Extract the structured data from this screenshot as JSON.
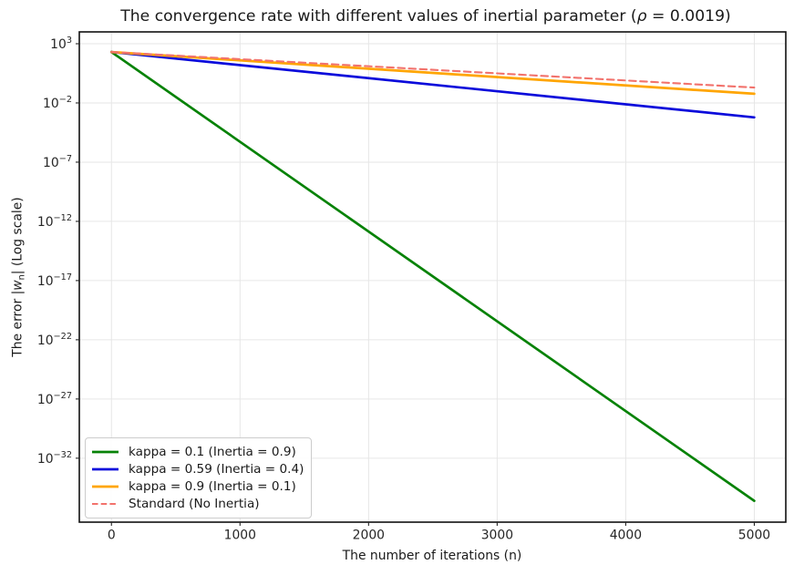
{
  "chart_data": {
    "type": "line",
    "title": {
      "pre": "The convergence rate with different values of inertial parameter (",
      "symbol": "ρ",
      "post": " = 0.0019)"
    },
    "xlabel": "The number of iterations (n)",
    "ylabel": {
      "pre": "The error |",
      "var": "w",
      "sub": "n",
      "post": "| (Log scale)"
    },
    "x_axis": {
      "ticks": [
        0,
        1000,
        2000,
        3000,
        4000,
        5000
      ],
      "lim": [
        -250,
        5245
      ]
    },
    "y_axis": {
      "scale": "log",
      "tick_exponents": [
        3,
        -2,
        -7,
        -12,
        -17,
        -22,
        -27,
        -32
      ],
      "lim_log10": [
        -37.4,
        4
      ]
    },
    "grid": true,
    "legend": {
      "position": "lower left"
    },
    "series": [
      {
        "name": "kappa = 0.1 (Inertia = 0.9)",
        "color": "#068206",
        "dash": "solid",
        "line_width": 2.7,
        "x": [
          0,
          5000
        ],
        "y": [
          200,
          2.5e-36
        ]
      },
      {
        "name": "kappa = 0.59 (Inertia = 0.4)",
        "color": "#0b0bdb",
        "dash": "solid",
        "line_width": 2.7,
        "x": [
          0,
          5000
        ],
        "y": [
          200,
          0.0006
        ]
      },
      {
        "name": "kappa = 0.9 (Inertia = 0.1)",
        "color": "#ffa502",
        "dash": "solid",
        "line_width": 2.7,
        "x": [
          0,
          5000
        ],
        "y": [
          200,
          0.06
        ]
      },
      {
        "name": "Standard (No Inertia)",
        "color": "#f2726c",
        "dash": "dashed",
        "line_width": 2.1,
        "x": [
          0,
          5000
        ],
        "y": [
          200,
          0.2
        ]
      }
    ]
  }
}
